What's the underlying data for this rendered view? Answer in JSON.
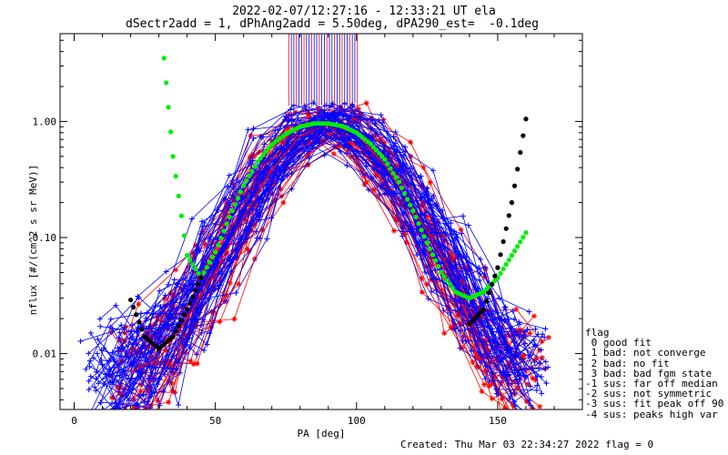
{
  "header": {
    "line1": "2022-02-07/12:27:16 - 12:33:21 UT ela",
    "line2": "dSectr2add = 1, dPhAng2add = 5.50deg, dPA290_est=  -0.1deg"
  },
  "legend": {
    "title": "flag",
    "items": [
      " 0 good fit",
      " 1 bad: not converge",
      " 2 bad: no fit",
      " 3 bad: bad fgm state",
      "-1 sus: far off median",
      "-2 sus: not symmetric",
      "-3 sus: fit peak off 90",
      "-4 sus: peaks high var"
    ]
  },
  "footer": {
    "created": "Created: Thu Mar 03 22:34:27 2022   flag = 0"
  },
  "colors": {
    "blue": "#0000ff",
    "red": "#ff0000",
    "green": "#00ee00",
    "black": "#000000"
  },
  "chart_data": {
    "type": "line",
    "title": "2022-02-07/12:27:16 - 12:33:21 UT ela",
    "subtitle": "dSectr2add = 1, dPhAng2add = 5.50deg, dPA290_est=  -0.1deg",
    "xlabel": "PA [deg]",
    "ylabel": "nflux [#/(cm^2 s sr MeV)]",
    "xlim": [
      -5,
      180
    ],
    "ylim": [
      0.0033,
      5.7
    ],
    "yscale": "log",
    "xticks": [
      0,
      50,
      100,
      150
    ],
    "xtick_labels": [
      "0",
      "50",
      "100",
      "150"
    ],
    "yticks": [
      0.01,
      0.1,
      1.0
    ],
    "ytick_labels": [
      "0.01",
      "0.10",
      "1.00"
    ],
    "series": [
      {
        "color": "blue",
        "style": "lines+plus markers",
        "x": [
          10,
          20,
          30,
          40,
          50,
          60,
          70,
          80,
          90,
          100,
          110,
          120,
          130,
          140,
          150,
          160
        ],
        "y": [
          0.006,
          0.008,
          0.012,
          0.022,
          0.06,
          0.17,
          0.42,
          0.78,
          0.95,
          0.75,
          0.4,
          0.17,
          0.065,
          0.025,
          0.011,
          0.007
        ]
      },
      {
        "color": "red",
        "style": "lines+star markers",
        "x": [
          20,
          30,
          40,
          50,
          60,
          70,
          80,
          90,
          100,
          110,
          120,
          130,
          140,
          150,
          160
        ],
        "y": [
          0.007,
          0.009,
          0.02,
          0.05,
          0.15,
          0.38,
          0.75,
          0.95,
          0.78,
          0.42,
          0.18,
          0.07,
          0.024,
          0.011,
          0.007
        ]
      },
      {
        "color": "green",
        "style": "dots",
        "x": [
          31,
          35,
          40,
          45,
          50,
          55,
          60,
          65,
          70,
          75,
          80,
          85,
          90,
          95,
          100,
          105,
          110,
          115,
          120,
          125,
          130,
          135,
          140,
          145,
          150,
          155,
          160
        ],
        "y": [
          5.7,
          0.5,
          0.07,
          0.045,
          0.075,
          0.15,
          0.28,
          0.45,
          0.63,
          0.78,
          0.9,
          0.96,
          0.96,
          0.91,
          0.8,
          0.64,
          0.47,
          0.3,
          0.17,
          0.09,
          0.05,
          0.034,
          0.03,
          0.034,
          0.045,
          0.07,
          0.11
        ]
      },
      {
        "color": "black",
        "style": "dots",
        "x": [
          20,
          25,
          30,
          35,
          40,
          45,
          140,
          145,
          150,
          155,
          160
        ],
        "y": [
          0.029,
          0.014,
          0.011,
          0.014,
          0.024,
          0.045,
          0.018,
          0.024,
          0.055,
          0.2,
          1.05
        ]
      }
    ],
    "grid": false,
    "legend_position": "right-bottom"
  }
}
